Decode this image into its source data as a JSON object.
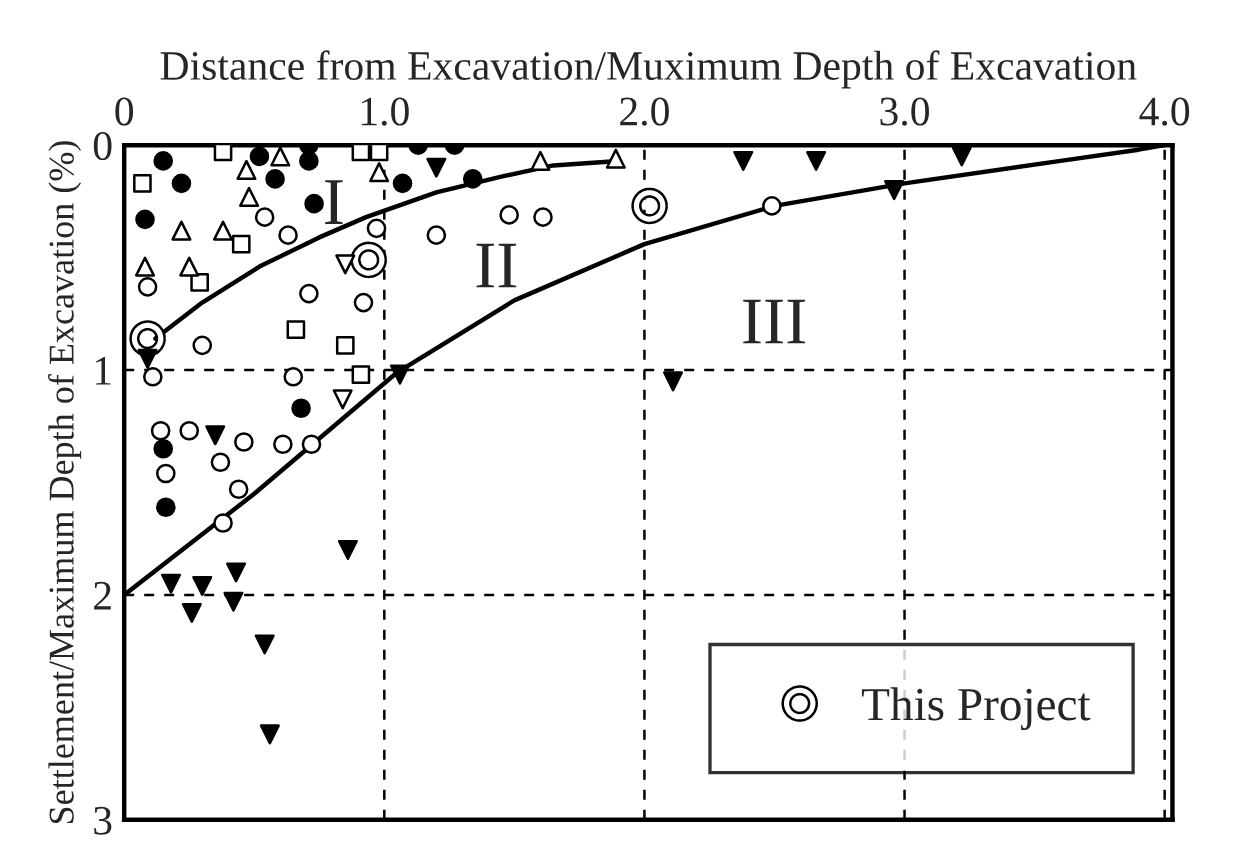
{
  "chart_data": {
    "type": "scatter",
    "xlabel": "Distance from Excavation/Muximum Depth of Excavation",
    "ylabel": "Settlement/Maximum Depth of Excavation (%)",
    "xlim": [
      0,
      4.03
    ],
    "ylim": [
      3,
      0
    ],
    "xticks": [
      0,
      {
        "value": 1,
        "label": "1.0"
      },
      {
        "value": 2,
        "label": "2.0"
      },
      {
        "value": 3,
        "label": "3.0"
      },
      {
        "value": 4,
        "label": "4.0"
      }
    ],
    "yticks": [
      0,
      1,
      2,
      3
    ],
    "grid": true,
    "legend": "bottom right",
    "series": [
      {
        "marker": "circle",
        "color": "#000000",
        "x": [
          0.15,
          0.22,
          0.08,
          0.52,
          0.58,
          0.71,
          0.71,
          0.73,
          1.13,
          1.27,
          1.07,
          1.34,
          0.68,
          0.15,
          0.16
        ],
        "values": [
          0.07,
          0.17,
          0.33,
          0.05,
          0.15,
          0.07,
          0.0,
          0.26,
          0.0,
          0.0,
          0.17,
          0.15,
          1.17,
          1.35,
          1.61
        ]
      },
      {
        "marker": "circle",
        "color": "#ffffff",
        "x": [
          0.54,
          0.63,
          0.09,
          0.97,
          1.2,
          0.71,
          0.92,
          0.3,
          0.11,
          0.65,
          0.14,
          0.25,
          0.46,
          0.61,
          0.72,
          0.16,
          0.37,
          0.44,
          0.38,
          1.48,
          1.61,
          2.49
        ],
        "values": [
          0.32,
          0.4,
          0.63,
          0.37,
          0.4,
          0.66,
          0.7,
          0.89,
          1.03,
          1.03,
          1.27,
          1.27,
          1.32,
          1.33,
          1.33,
          1.46,
          1.41,
          1.53,
          1.68,
          0.31,
          0.32,
          0.27
        ]
      },
      {
        "marker": "square",
        "color": "#ffffff",
        "x": [
          0.38,
          0.07,
          0.91,
          0.98,
          0.45,
          0.29,
          0.66,
          0.85,
          0.91
        ],
        "values": [
          0.03,
          0.17,
          0.03,
          0.03,
          0.44,
          0.61,
          0.82,
          0.89,
          1.02
        ]
      },
      {
        "marker": "triangle",
        "color": "#ffffff",
        "x": [
          0.6,
          0.47,
          0.48,
          0.22,
          0.38,
          0.08,
          0.25,
          0.98,
          1.6,
          1.89
        ],
        "values": [
          0.05,
          0.11,
          0.23,
          0.38,
          0.38,
          0.54,
          0.54,
          0.12,
          0.07,
          0.06
        ]
      },
      {
        "marker": "triangle down",
        "color": "#ffffff",
        "x": [
          0.85,
          0.84
        ],
        "values": [
          0.53,
          1.13
        ]
      },
      {
        "marker": "triangle down",
        "color": "#000000",
        "x": [
          1.2,
          0.09,
          1.06,
          0.35,
          0.18,
          0.3,
          0.43,
          0.26,
          0.42,
          0.86,
          0.54,
          0.56,
          2.38,
          2.66,
          3.22,
          2.96,
          2.11
        ],
        "values": [
          0.1,
          0.95,
          1.02,
          1.29,
          1.95,
          1.96,
          1.9,
          2.08,
          2.03,
          1.8,
          2.22,
          2.62,
          0.07,
          0.07,
          0.05,
          0.2,
          1.05
        ]
      },
      {
        "type": "line",
        "color": "#000000",
        "line_style": "solid",
        "x": [
          0.12,
          0.3,
          0.52,
          0.75,
          0.93,
          1.2,
          1.45,
          1.65,
          1.9
        ],
        "values": [
          0.86,
          0.7,
          0.54,
          0.41,
          0.32,
          0.21,
          0.14,
          0.09,
          0.07
        ]
      },
      {
        "type": "line",
        "color": "#000000",
        "line_style": "solid",
        "x": [
          0,
          0.5,
          1.05,
          1.5,
          2.0,
          2.5,
          3.0,
          3.6,
          3.9,
          4.0
        ],
        "values": [
          2.0,
          1.55,
          1.01,
          0.69,
          0.44,
          0.27,
          0.17,
          0.07,
          0.02,
          0
        ]
      },
      {
        "name": "This Project",
        "marker": "double circle",
        "color": "#ffffff",
        "x": [
          0.94,
          0.09,
          2.02
        ],
        "values": [
          0.51,
          0.86,
          0.27
        ]
      }
    ],
    "annotations": [
      "I",
      "II",
      "III"
    ]
  }
}
